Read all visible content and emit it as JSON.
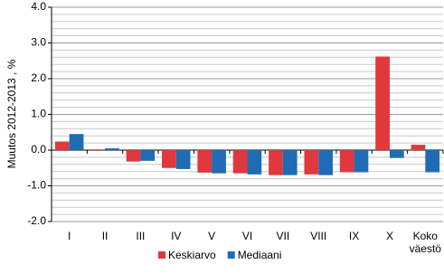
{
  "chart_data": {
    "type": "bar",
    "y_label": "Muutos 2012-2013 , %",
    "categories": [
      "I",
      "II",
      "III",
      "IV",
      "V",
      "VI",
      "VII",
      "VIII",
      "IX",
      "X",
      "Koko väestö"
    ],
    "series": [
      {
        "name": "Keskiarvo",
        "color": "#e0383c",
        "values": [
          0.24,
          0.02,
          -0.32,
          -0.5,
          -0.63,
          -0.65,
          -0.7,
          -0.68,
          -0.62,
          2.62,
          0.15
        ]
      },
      {
        "name": "Mediaani",
        "color": "#1f6cb4",
        "values": [
          0.45,
          0.05,
          -0.3,
          -0.53,
          -0.65,
          -0.68,
          -0.7,
          -0.7,
          -0.62,
          -0.22,
          -0.62
        ]
      }
    ],
    "ylim": [
      -2,
      4
    ],
    "yticks": [
      {
        "value": 4,
        "label": "4.0"
      },
      {
        "value": 3,
        "label": "3.0"
      },
      {
        "value": 2,
        "label": "2.0"
      },
      {
        "value": 1,
        "label": "1.0"
      },
      {
        "value": 0,
        "label": "0.0"
      },
      {
        "value": -1,
        "label": "-1.0"
      },
      {
        "value": -2,
        "label": "-2.0"
      }
    ],
    "minor_yticks": [
      3.8,
      3.6,
      3.4,
      3.2,
      2.8,
      2.6,
      2.4,
      2.2,
      1.8,
      1.6,
      1.4,
      1.2,
      0.8,
      0.6,
      0.4,
      0.2,
      -0.2,
      -0.4,
      -0.6,
      -0.8,
      -1.2,
      -1.4,
      -1.6,
      -1.8
    ],
    "grid": true,
    "legend": "bottom"
  }
}
